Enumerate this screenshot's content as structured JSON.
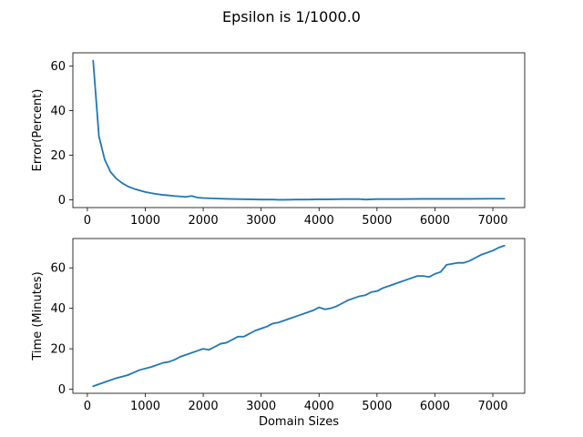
{
  "figure": {
    "title": "Epsilon is 1/1000.0",
    "colors": {
      "series": "#1f77b4"
    }
  },
  "chart_data": [
    {
      "type": "line",
      "title": "",
      "xlabel": "",
      "ylabel": "Error(Percent)",
      "xlim": [
        -250,
        7550
      ],
      "ylim": [
        -3.5,
        66
      ],
      "xticks": [
        0,
        1000,
        2000,
        3000,
        4000,
        5000,
        6000,
        7000
      ],
      "yticks": [
        0,
        20,
        40,
        60
      ],
      "grid": false,
      "series": [
        {
          "x": [
            100,
            200,
            300,
            400,
            500,
            600,
            700,
            800,
            900,
            1000,
            1100,
            1200,
            1300,
            1400,
            1500,
            1600,
            1700,
            1800,
            1900,
            2000,
            2200,
            2400,
            2600,
            2800,
            3000,
            3200,
            3300,
            3400,
            3600,
            3800,
            4000,
            4200,
            4400,
            4600,
            4700,
            4800,
            4900,
            5000,
            5400,
            5800,
            6200,
            6600,
            7000,
            7200
          ],
          "y": [
            62.5,
            28.5,
            18,
            12.5,
            9.5,
            7.5,
            6,
            5,
            4.2,
            3.5,
            3,
            2.6,
            2.2,
            2,
            1.7,
            1.5,
            1.3,
            1.7,
            1,
            0.8,
            0.6,
            0.4,
            0.3,
            0.2,
            0.1,
            0.1,
            0,
            0,
            0.1,
            0.1,
            0.2,
            0.2,
            0.3,
            0.3,
            0.3,
            0.1,
            0.2,
            0.3,
            0.3,
            0.4,
            0.4,
            0.4,
            0.5,
            0.5
          ]
        }
      ]
    },
    {
      "type": "line",
      "title": "",
      "xlabel": "Domain Sizes",
      "ylabel": "Time (Minutes)",
      "xlim": [
        -250,
        7550
      ],
      "ylim": [
        -2,
        74.5
      ],
      "xticks": [
        0,
        1000,
        2000,
        3000,
        4000,
        5000,
        6000,
        7000
      ],
      "yticks": [
        0,
        20,
        40,
        60
      ],
      "grid": false,
      "series": [
        {
          "x": [
            100,
            300,
            500,
            700,
            900,
            1100,
            1300,
            1400,
            1500,
            1600,
            1700,
            1900,
            2000,
            2100,
            2200,
            2300,
            2400,
            2500,
            2600,
            2700,
            2800,
            2900,
            3000,
            3100,
            3200,
            3300,
            3400,
            3500,
            3600,
            3700,
            3800,
            3900,
            4000,
            4100,
            4200,
            4300,
            4400,
            4500,
            4600,
            4700,
            4800,
            4900,
            5000,
            5100,
            5200,
            5300,
            5400,
            5500,
            5600,
            5700,
            5800,
            5900,
            6000,
            6100,
            6200,
            6300,
            6400,
            6500,
            6600,
            6700,
            6800,
            6900,
            7000,
            7100,
            7200
          ],
          "y": [
            1.5,
            3.5,
            5.5,
            7,
            9.5,
            11,
            13,
            13.5,
            14.5,
            16,
            17,
            19,
            20,
            19.5,
            21,
            22.5,
            23,
            24.5,
            26,
            26,
            27.5,
            29,
            30,
            31,
            32.5,
            33,
            34,
            35,
            36,
            37,
            38,
            39,
            40.5,
            39.5,
            40,
            41,
            42.5,
            44,
            45,
            46,
            46.5,
            48,
            48.5,
            50,
            51,
            52,
            53,
            54,
            55,
            56,
            56,
            55.5,
            57,
            58,
            61.5,
            62,
            62.5,
            62.5,
            63.5,
            65,
            66.5,
            67.5,
            68.5,
            70,
            71
          ]
        }
      ]
    }
  ]
}
